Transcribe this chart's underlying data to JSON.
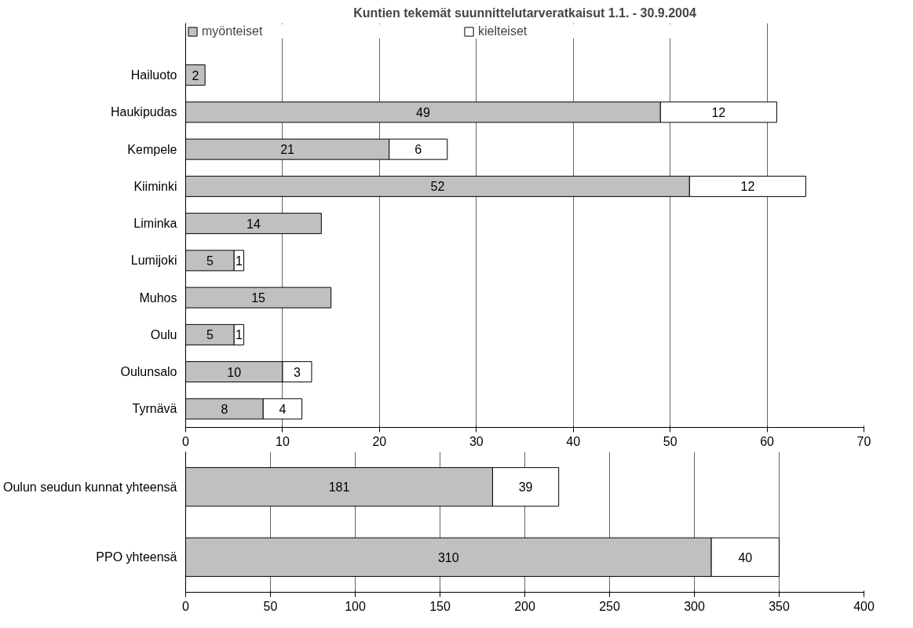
{
  "chart_data": [
    {
      "type": "bar",
      "title": "Kuntien tekemät suunnittelutarveratkaisut 1.1. - 30.9.2004",
      "orientation": "horizontal",
      "stacked": true,
      "categories": [
        "Hailuoto",
        "Haukipudas",
        "Kempele",
        "Kiiminki",
        "Liminka",
        "Lumijoki",
        "Muhos",
        "Oulu",
        "Oulunsalo",
        "Tyrnävä"
      ],
      "series": [
        {
          "name": "myönteiset",
          "color": "#c0c0c0",
          "values": [
            2,
            49,
            21,
            52,
            14,
            5,
            15,
            5,
            10,
            8
          ]
        },
        {
          "name": "kielteiset",
          "color": "#ffffff",
          "values": [
            null,
            12,
            6,
            12,
            null,
            1,
            null,
            1,
            3,
            4
          ]
        }
      ],
      "xlim": [
        0,
        70
      ],
      "xticks": [
        0,
        10,
        20,
        30,
        40,
        50,
        60,
        70
      ],
      "grid": "x",
      "legend": "top",
      "data_labels": true
    },
    {
      "type": "bar",
      "orientation": "horizontal",
      "stacked": true,
      "categories": [
        "Oulun seudun kunnat yhteensä",
        "PPO yhteensä"
      ],
      "series": [
        {
          "color": "#c0c0c0",
          "values": [
            181,
            310
          ]
        },
        {
          "color": "#ffffff",
          "values": [
            39,
            40
          ]
        }
      ],
      "xlim": [
        0,
        400
      ],
      "xticks": [
        0,
        50,
        100,
        150,
        200,
        250,
        300,
        350,
        400
      ],
      "grid": "x",
      "data_labels": true
    }
  ]
}
